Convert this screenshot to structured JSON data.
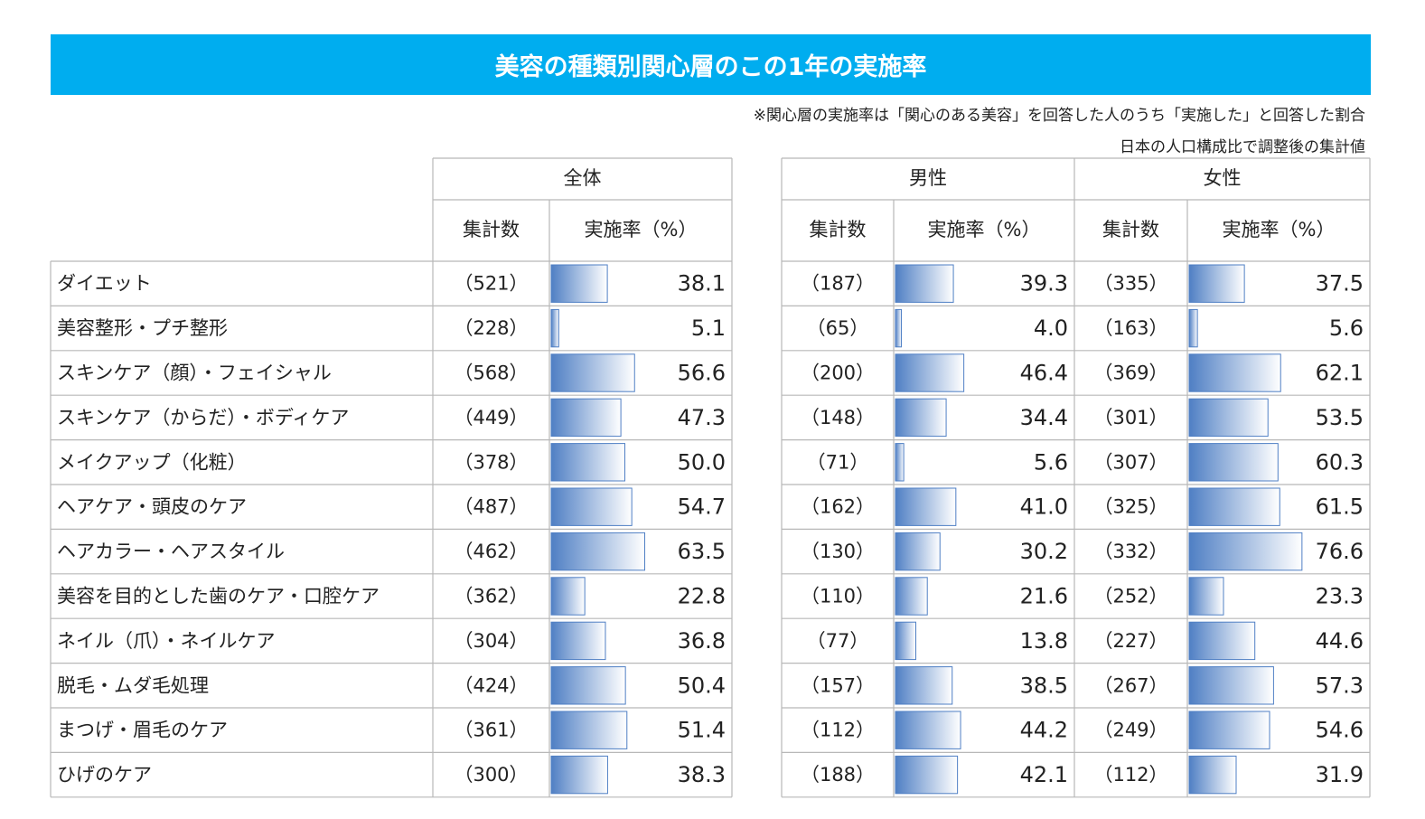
{
  "title": "美容の種類別関心層のこの1年の実施率",
  "notes": {
    "line1": "※関心層の実施率は「関心のある美容」を回答した人のうち「実施した」と回答した割合",
    "line2": "日本の人口構成比で調整後の集計値"
  },
  "headers": {
    "group_total": "全体",
    "group_male": "男性",
    "group_female": "女性",
    "count": "集計数",
    "rate": "実施率（%）"
  },
  "colors": {
    "banner": "#00adef",
    "bar_dark": "#4f7fc4",
    "bar_light": "#ffffff",
    "grid": "#b8b8b8"
  },
  "chart_data": {
    "type": "table",
    "title": "美容の種類別関心層のこの1年の実施率",
    "categories": [
      "ダイエット",
      "美容整形・プチ整形",
      "スキンケア（顔）・フェイシャル",
      "スキンケア（からだ）・ボディケア",
      "メイクアップ（化粧）",
      "ヘアケア・頭皮のケア",
      "ヘアカラー・ヘアスタイル",
      "美容を目的とした歯のケア・口腔ケア",
      "ネイル（爪）・ネイルケア",
      "脱毛・ムダ毛処理",
      "まつげ・眉毛のケア",
      "ひげのケア"
    ],
    "series": [
      {
        "name": "全体",
        "counts": [
          "（521）",
          "（228）",
          "（568）",
          "（449）",
          "（378）",
          "（487）",
          "（462）",
          "（362）",
          "（304）",
          "（424）",
          "（361）",
          "（300）"
        ],
        "values": [
          38.1,
          5.1,
          56.6,
          47.3,
          50.0,
          54.7,
          63.5,
          22.8,
          36.8,
          50.4,
          51.4,
          38.3
        ]
      },
      {
        "name": "男性",
        "counts": [
          "（187）",
          "（65）",
          "（200）",
          "（148）",
          "（71）",
          "（162）",
          "（130）",
          "（110）",
          "（77）",
          "（157）",
          "（112）",
          "（188）"
        ],
        "values": [
          39.3,
          4.0,
          46.4,
          34.4,
          5.6,
          41.0,
          30.2,
          21.6,
          13.8,
          38.5,
          44.2,
          42.1
        ]
      },
      {
        "name": "女性",
        "counts": [
          "（335）",
          "（163）",
          "（369）",
          "（301）",
          "（307）",
          "（325）",
          "（332）",
          "（252）",
          "（227）",
          "（267）",
          "（249）",
          "（112）"
        ],
        "values": [
          37.5,
          5.6,
          62.1,
          53.5,
          60.3,
          61.5,
          76.6,
          23.3,
          44.6,
          57.3,
          54.6,
          31.9
        ]
      }
    ],
    "bar_scale_max": 100
  }
}
